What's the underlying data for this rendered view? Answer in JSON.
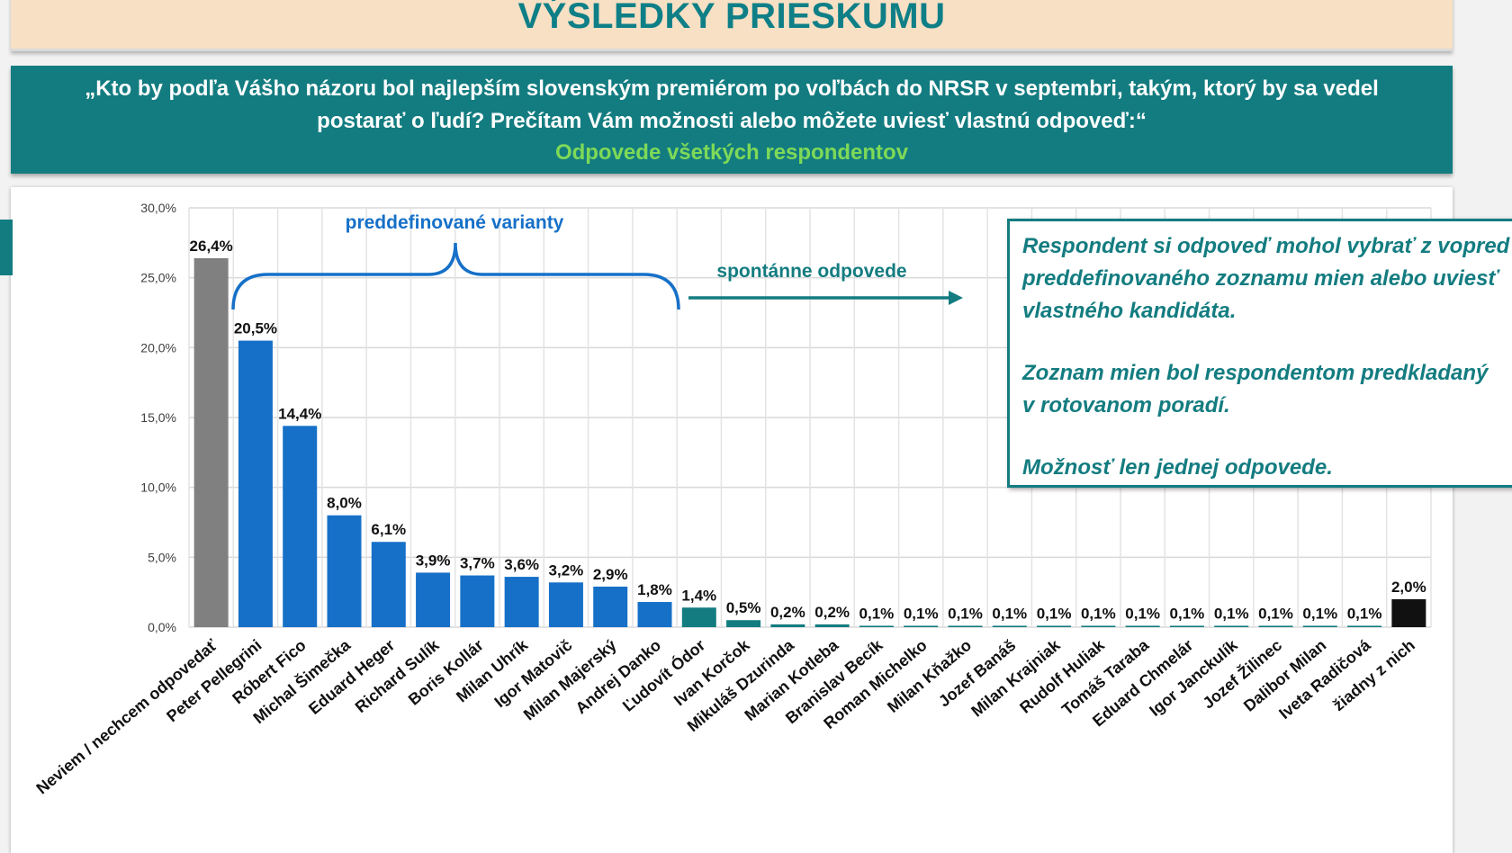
{
  "header": {
    "title": "VÝSLEDKY PRIESKUMU"
  },
  "question": {
    "text": "„Kto by podľa Vášho názoru bol najlepším slovenským premiérom po voľbách do NRSR v septembri, takým, ktorý by sa vedel postarať o ľudí? Prečítam Vám možnosti alebo môžete uviesť vlastnú odpoveď:“",
    "subtitle": "Odpovede všetkých respondentov"
  },
  "annotations": {
    "predefined_label": "preddefinované varianty",
    "spontaneous_label": "spontánne odpovede"
  },
  "note": {
    "paragraphs": [
      "Respondent si odpoveď mohol vybrať z vopred\npreddefinovaného zoznamu mien alebo uviesť\nvlastného kandidáta.",
      "Zoznam mien bol respondentom predkladaný\nv rotovanom poradí.",
      "Možnosť len jednej odpovede."
    ]
  },
  "colors": {
    "teal": "#137c80",
    "blue": "#1670c8",
    "gray": "#808080",
    "black": "#111111",
    "green_text": "#7ed957"
  },
  "chart_data": {
    "type": "bar",
    "ylim": [
      0,
      30
    ],
    "yticks": [
      "0,0%",
      "5,0%",
      "10,0%",
      "15,0%",
      "20,0%",
      "25,0%",
      "30,0%"
    ],
    "grid": true,
    "categories": [
      "Neviem / nechcem odpovedať",
      "Peter Pellegrini",
      "Róbert Fico",
      "Michal Šimečka",
      "Eduard Heger",
      "Richard Sulík",
      "Boris Kollár",
      "Milan Uhrík",
      "Igor Matovič",
      "Milan Majerský",
      "Andrej Danko",
      "Ľudovít Ódor",
      "Ivan Korčok",
      "Mikuláš Dzurinda",
      "Marian Kotleba",
      "Branislav Becík",
      "Roman Michelko",
      "Milan Kňažko",
      "Jozef Banáš",
      "Milan Krajniak",
      "Rudolf Huliak",
      "Tomáš Taraba",
      "Eduard Chmelár",
      "Igor Janckulík",
      "Jozef Žilinec",
      "Dalibor Milan",
      "Iveta Radičová",
      "žiadny z nich"
    ],
    "values": [
      26.4,
      20.5,
      14.4,
      8.0,
      6.1,
      3.9,
      3.7,
      3.6,
      3.2,
      2.9,
      1.8,
      1.4,
      0.5,
      0.2,
      0.2,
      0.1,
      0.1,
      0.1,
      0.1,
      0.1,
      0.1,
      0.1,
      0.1,
      0.1,
      0.1,
      0.1,
      0.1,
      2.0
    ],
    "labels": [
      "26,4%",
      "20,5%",
      "14,4%",
      "8,0%",
      "6,1%",
      "3,9%",
      "3,7%",
      "3,6%",
      "3,2%",
      "2,9%",
      "1,8%",
      "1,4%",
      "0,5%",
      "0,2%",
      "0,2%",
      "0,1%",
      "0,1%",
      "0,1%",
      "0,1%",
      "0,1%",
      "0,1%",
      "0,1%",
      "0,1%",
      "0,1%",
      "0,1%",
      "0,1%",
      "0,1%",
      "2,0%"
    ],
    "bar_colors": [
      "#808080",
      "#1670c8",
      "#1670c8",
      "#1670c8",
      "#1670c8",
      "#1670c8",
      "#1670c8",
      "#1670c8",
      "#1670c8",
      "#1670c8",
      "#1670c8",
      "#137c80",
      "#137c80",
      "#137c80",
      "#137c80",
      "#137c80",
      "#137c80",
      "#137c80",
      "#137c80",
      "#137c80",
      "#137c80",
      "#137c80",
      "#137c80",
      "#137c80",
      "#137c80",
      "#137c80",
      "#137c80",
      "#111111"
    ]
  }
}
